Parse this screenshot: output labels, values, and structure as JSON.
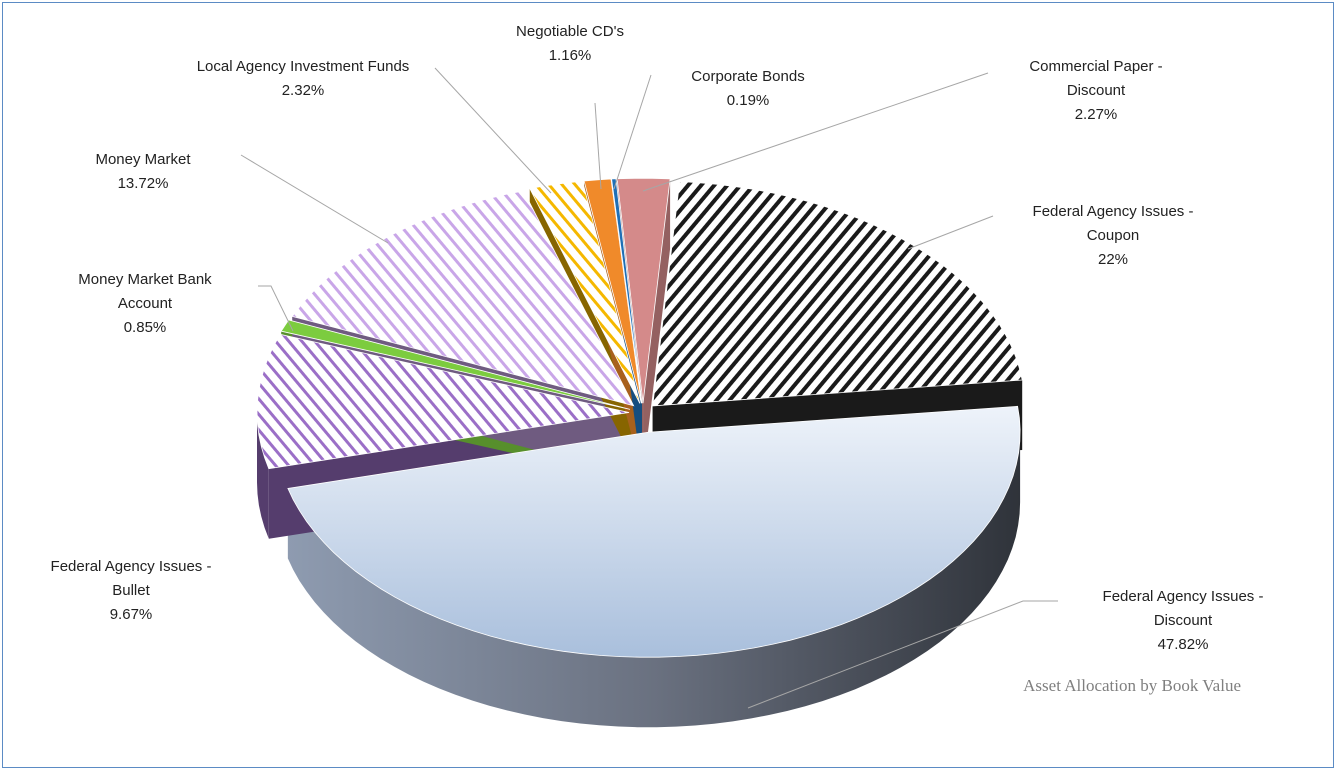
{
  "chart_data": {
    "type": "pie3d",
    "title": "Asset Allocation by Book Value",
    "categories": [
      "Commercial Paper - Discount",
      "Federal Agency Issues - Coupon",
      "Federal Agency Issues - Discount",
      "Federal Agency Issues - Bullet",
      "Money Market Bank Account",
      "Money Market",
      "Local Agency Investment Funds",
      "Negotiable CD's",
      "Corporate Bonds"
    ],
    "values": [
      2.27,
      22,
      47.82,
      9.67,
      0.85,
      13.72,
      2.32,
      1.16,
      0.19
    ],
    "value_labels": [
      "2.27%",
      "22%",
      "47.82%",
      "9.67%",
      "0.85%",
      "13.72%",
      "2.32%",
      "1.16%",
      "0.19%"
    ],
    "colors": [
      "#d48a8a",
      "#1a1a1a",
      "#c9d8ea",
      "#9b6fc7",
      "#7ccc3f",
      "#c9a6e8",
      "#f5b800",
      "#f08a2a",
      "#1f6fb5"
    ],
    "hatched": [
      false,
      true,
      false,
      true,
      false,
      true,
      true,
      false,
      false
    ]
  }
}
